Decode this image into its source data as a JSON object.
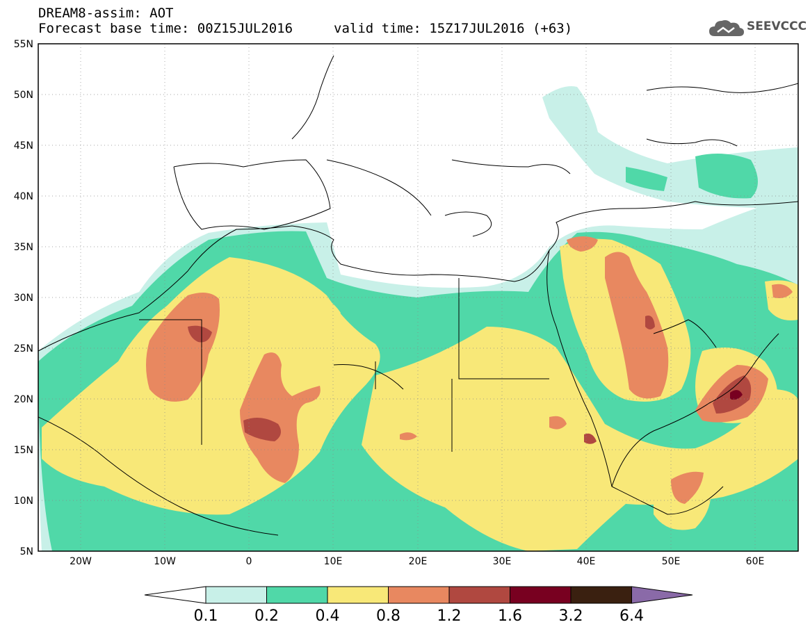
{
  "header": {
    "line1": "DREAM8-assim: AOT",
    "base_time": "Forecast base time: 00Z15JUL2016",
    "valid_time": "valid time: 15Z17JUL2016 (+63)"
  },
  "logo": {
    "text": "SEEVCCC",
    "icon": "cloud-icon"
  },
  "map": {
    "lat_labels": [
      "55N",
      "50N",
      "45N",
      "40N",
      "35N",
      "30N",
      "25N",
      "20N",
      "15N",
      "10N",
      "5N"
    ],
    "lon_labels": [
      "20W",
      "10W",
      "0",
      "10E",
      "20E",
      "30E",
      "40E",
      "50E",
      "60E"
    ]
  },
  "colorbar": {
    "labels": [
      "0.1",
      "0.2",
      "0.4",
      "0.8",
      "1.2",
      "1.6",
      "3.2",
      "6.4"
    ],
    "colors": [
      "#ffffff",
      "#c8f0e8",
      "#50d8a8",
      "#f8e878",
      "#e88860",
      "#b04840",
      "#780020",
      "#3a2010",
      "#8a6aa8"
    ]
  },
  "palette": {
    "lightcyan": "#c8f0e8",
    "green": "#50d8a8",
    "yellow": "#f8e878",
    "orange": "#e88860",
    "red": "#b04840",
    "darkred": "#780020"
  }
}
